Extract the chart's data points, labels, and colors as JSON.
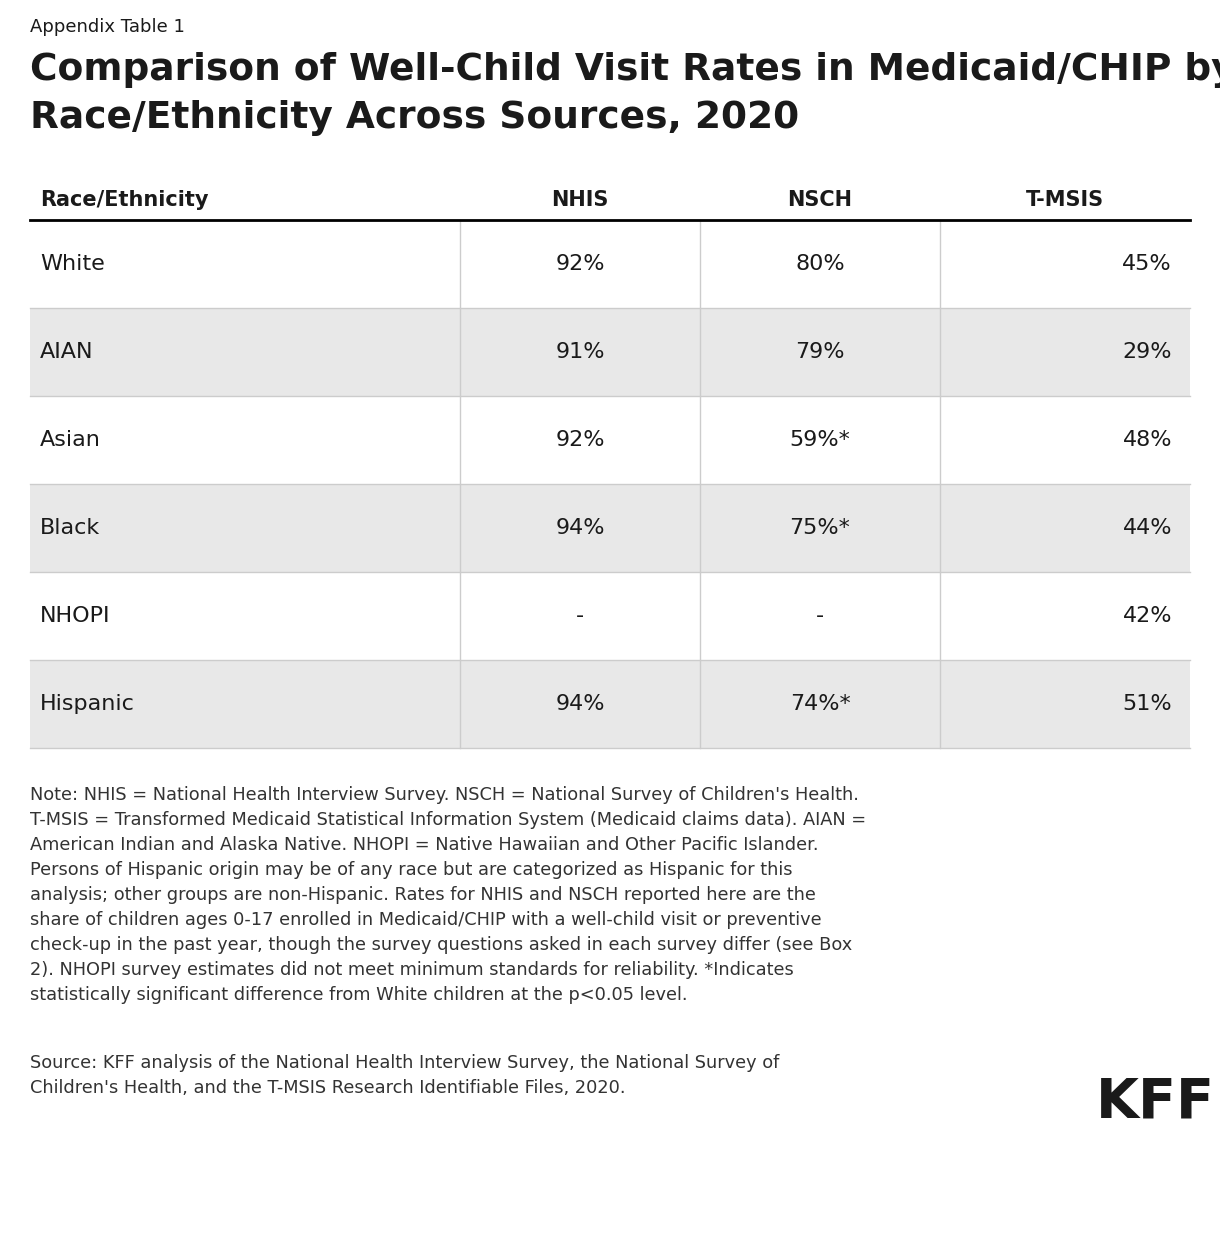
{
  "appendix_label": "Appendix Table 1",
  "title_line1": "Comparison of Well-Child Visit Rates in Medicaid/CHIP by",
  "title_line2": "Race/Ethnicity Across Sources, 2020",
  "columns": [
    "Race/Ethnicity",
    "NHIS",
    "NSCH",
    "T-MSIS"
  ],
  "rows": [
    {
      "race": "White",
      "nhis": "92%",
      "nsch": "80%",
      "tmsis": "45%",
      "shaded": false
    },
    {
      "race": "AIAN",
      "nhis": "91%",
      "nsch": "79%",
      "tmsis": "29%",
      "shaded": true
    },
    {
      "race": "Asian",
      "nhis": "92%",
      "nsch": "59%*",
      "tmsis": "48%",
      "shaded": false
    },
    {
      "race": "Black",
      "nhis": "94%",
      "nsch": "75%*",
      "tmsis": "44%",
      "shaded": true
    },
    {
      "race": "NHOPI",
      "nhis": "-",
      "nsch": "-",
      "tmsis": "42%",
      "shaded": false
    },
    {
      "race": "Hispanic",
      "nhis": "94%",
      "nsch": "74%*",
      "tmsis": "51%",
      "shaded": true
    }
  ],
  "note_text": "Note: NHIS = National Health Interview Survey. NSCH = National Survey of Children's Health.\nT-MSIS = Transformed Medicaid Statistical Information System (Medicaid claims data). AIAN =\nAmerican Indian and Alaska Native. NHOPI = Native Hawaiian and Other Pacific Islander.\nPersons of Hispanic origin may be of any race but are categorized as Hispanic for this\nanalysis; other groups are non-Hispanic. Rates for NHIS and NSCH reported here are the\nshare of children ages 0-17 enrolled in Medicaid/CHIP with a well-child visit or preventive\ncheck-up in the past year, though the survey questions asked in each survey differ (see Box\n2). NHOPI survey estimates did not meet minimum standards for reliability. *Indicates\nstatistically significant difference from White children at the p<0.05 level.",
  "source_text": "Source: KFF analysis of the National Health Interview Survey, the National Survey of\nChildren's Health, and the T-MSIS Research Identifiable Files, 2020.",
  "shaded_color": "#e8e8e8",
  "white_color": "#ffffff",
  "header_line_color": "#000000",
  "col_line_color": "#cccccc",
  "row_line_color": "#cccccc",
  "background_color": "#ffffff",
  "text_color": "#1a1a1a",
  "note_color": "#333333"
}
